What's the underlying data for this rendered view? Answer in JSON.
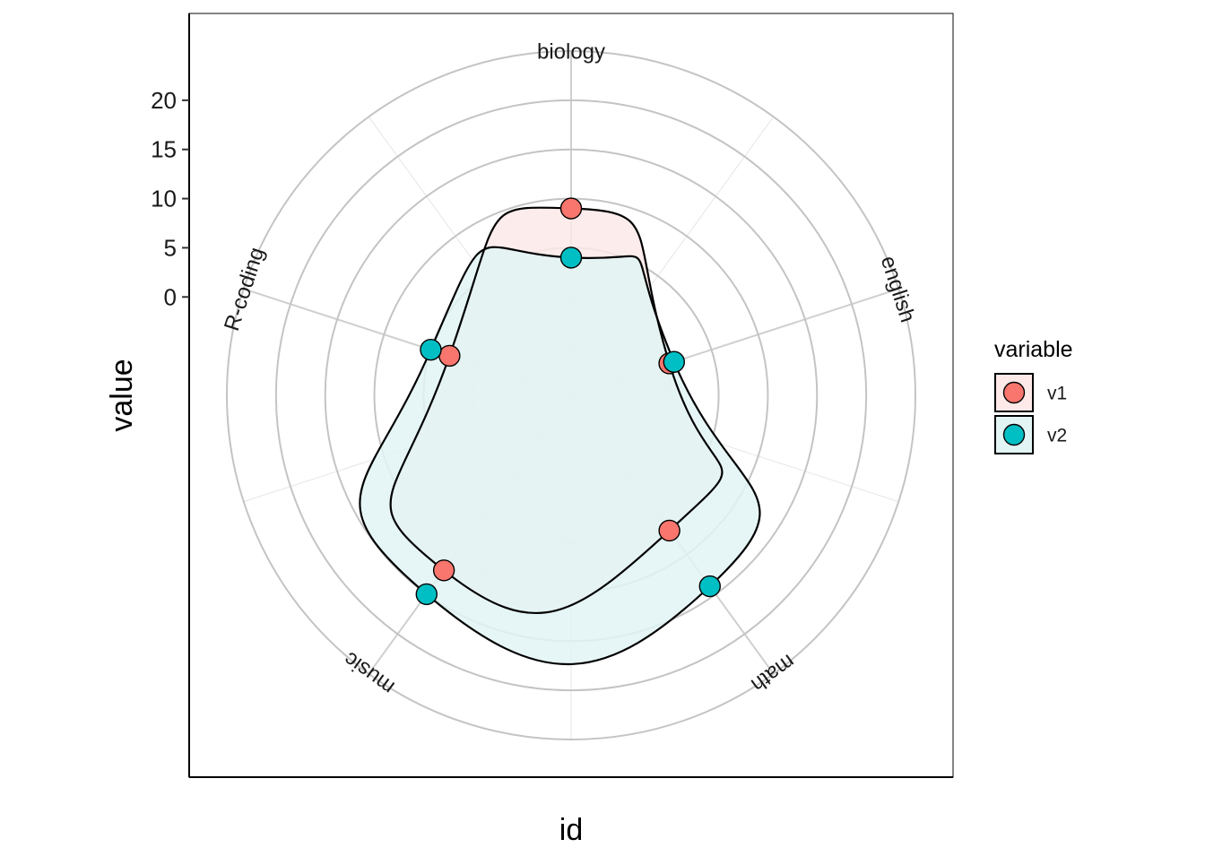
{
  "chart_data": {
    "type": "radar",
    "xlabel": "id",
    "ylabel": "value",
    "categories": [
      "biology",
      "english",
      "math",
      "music",
      "R-coding"
    ],
    "y_ticks": [
      0,
      5,
      10,
      15,
      20
    ],
    "ylim": [
      -10,
      25
    ],
    "grid": true,
    "legend": {
      "title": "variable",
      "position": "right"
    },
    "series": [
      {
        "name": "v1",
        "color": "#F8766D",
        "fill": "#FCE9E8",
        "values": [
          9,
          0.5,
          7,
          12,
          3
        ]
      },
      {
        "name": "v2",
        "color": "#00BFC4",
        "fill": "#E2F4F4",
        "values": [
          4,
          1,
          14,
          15,
          5
        ]
      }
    ]
  }
}
